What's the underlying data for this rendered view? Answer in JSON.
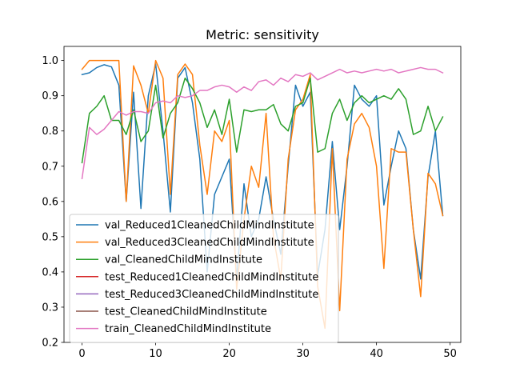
{
  "chart_data": {
    "type": "line",
    "title": "Metric: sensitivity",
    "xlabel": "",
    "ylabel": "",
    "xlim": [
      -2.45,
      51.45
    ],
    "ylim": [
      0.2,
      1.04
    ],
    "xticks": [
      0,
      10,
      20,
      30,
      40,
      50
    ],
    "yticks": [
      0.2,
      0.3,
      0.4,
      0.5,
      0.6,
      0.7,
      0.8,
      0.9,
      1.0
    ],
    "ytick_labels": [
      "0.2",
      "0.3",
      "0.4",
      "0.5",
      "0.6",
      "0.7",
      "0.8",
      "0.9",
      "1.0"
    ],
    "grid": false,
    "legend_position": "lower-left",
    "series": [
      {
        "name": "val_Reduced1CleanedChildMindInstitute",
        "color": "#1f77b4",
        "x": [
          0,
          1,
          2,
          3,
          4,
          5,
          6,
          7,
          8,
          9,
          10,
          11,
          12,
          13,
          14,
          15,
          16,
          17,
          18,
          19,
          20,
          21,
          22,
          23,
          24,
          25,
          26,
          27,
          28,
          29,
          30,
          31,
          32,
          33,
          34,
          35,
          36,
          37,
          38,
          39,
          40,
          41,
          42,
          43,
          44,
          45,
          46,
          47,
          48,
          49
        ],
        "values": [
          0.96,
          0.965,
          0.98,
          0.988,
          0.982,
          0.93,
          0.6,
          0.91,
          0.58,
          0.9,
          0.99,
          0.8,
          0.57,
          0.95,
          0.98,
          0.88,
          0.72,
          0.4,
          0.62,
          0.67,
          0.72,
          0.38,
          0.65,
          0.5,
          0.55,
          0.67,
          0.55,
          0.45,
          0.7,
          0.93,
          0.87,
          0.91,
          0.39,
          0.52,
          0.77,
          0.52,
          0.7,
          0.93,
          0.89,
          0.87,
          0.9,
          0.59,
          0.7,
          0.8,
          0.75,
          0.52,
          0.38,
          0.67,
          0.8,
          0.56
        ]
      },
      {
        "name": "val_Reduced3CleanedChildMindInstitute",
        "color": "#ff7f0e",
        "x": [
          0,
          1,
          2,
          3,
          4,
          5,
          6,
          7,
          8,
          9,
          10,
          11,
          12,
          13,
          14,
          15,
          16,
          17,
          18,
          19,
          20,
          21,
          22,
          23,
          24,
          25,
          26,
          27,
          28,
          29,
          30,
          31,
          32,
          33,
          34,
          35,
          36,
          37,
          38,
          39,
          40,
          41,
          42,
          43,
          44,
          45,
          46,
          47,
          48,
          49
        ],
        "values": [
          0.975,
          1.0,
          1.0,
          1.0,
          1.0,
          1.0,
          0.6,
          0.985,
          0.93,
          0.85,
          1.0,
          0.95,
          0.62,
          0.96,
          0.99,
          0.96,
          0.76,
          0.62,
          0.8,
          0.77,
          0.83,
          0.35,
          0.55,
          0.7,
          0.64,
          0.85,
          0.5,
          0.38,
          0.72,
          0.86,
          0.89,
          0.96,
          0.36,
          0.24,
          0.75,
          0.29,
          0.72,
          0.82,
          0.85,
          0.81,
          0.7,
          0.41,
          0.75,
          0.74,
          0.74,
          0.52,
          0.33,
          0.68,
          0.65,
          0.56
        ]
      },
      {
        "name": "val_CleanedChildMindInstitute",
        "color": "#2ca02c",
        "x": [
          0,
          1,
          2,
          3,
          4,
          5,
          6,
          7,
          8,
          9,
          10,
          11,
          12,
          13,
          14,
          15,
          16,
          17,
          18,
          19,
          20,
          21,
          22,
          23,
          24,
          25,
          26,
          27,
          28,
          29,
          30,
          31,
          32,
          33,
          34,
          35,
          36,
          37,
          38,
          39,
          40,
          41,
          42,
          43,
          44,
          45,
          46,
          47,
          48,
          49
        ],
        "values": [
          0.71,
          0.85,
          0.87,
          0.9,
          0.83,
          0.83,
          0.79,
          0.86,
          0.77,
          0.8,
          0.93,
          0.78,
          0.85,
          0.88,
          0.95,
          0.92,
          0.88,
          0.81,
          0.86,
          0.79,
          0.89,
          0.74,
          0.86,
          0.855,
          0.86,
          0.86,
          0.875,
          0.82,
          0.8,
          0.87,
          0.88,
          0.95,
          0.74,
          0.75,
          0.85,
          0.89,
          0.83,
          0.88,
          0.9,
          0.88,
          0.89,
          0.9,
          0.89,
          0.92,
          0.89,
          0.79,
          0.8,
          0.87,
          0.8,
          0.84
        ]
      },
      {
        "name": "test_Reduced1CleanedChildMindInstitute",
        "color": "#d62728",
        "x": [],
        "values": []
      },
      {
        "name": "test_Reduced3CleanedChildMindInstitute",
        "color": "#9467bd",
        "x": [],
        "values": []
      },
      {
        "name": "test_CleanedChildMindInstitute",
        "color": "#8c564b",
        "x": [],
        "values": []
      },
      {
        "name": "train_CleanedChildMindInstitute",
        "color": "#e377c2",
        "x": [
          0,
          1,
          2,
          3,
          4,
          5,
          6,
          7,
          8,
          9,
          10,
          11,
          12,
          13,
          14,
          15,
          16,
          17,
          18,
          19,
          20,
          21,
          22,
          23,
          24,
          25,
          26,
          27,
          28,
          29,
          30,
          31,
          32,
          33,
          34,
          35,
          36,
          37,
          38,
          39,
          40,
          41,
          42,
          43,
          44,
          45,
          46,
          47,
          48,
          49
        ],
        "values": [
          0.665,
          0.81,
          0.79,
          0.805,
          0.83,
          0.855,
          0.845,
          0.855,
          0.855,
          0.85,
          0.88,
          0.885,
          0.88,
          0.9,
          0.895,
          0.9,
          0.915,
          0.915,
          0.925,
          0.93,
          0.925,
          0.91,
          0.925,
          0.915,
          0.94,
          0.945,
          0.93,
          0.95,
          0.94,
          0.96,
          0.955,
          0.965,
          0.945,
          0.955,
          0.965,
          0.975,
          0.965,
          0.97,
          0.965,
          0.97,
          0.975,
          0.97,
          0.975,
          0.965,
          0.97,
          0.975,
          0.98,
          0.975,
          0.975,
          0.965
        ]
      }
    ]
  }
}
